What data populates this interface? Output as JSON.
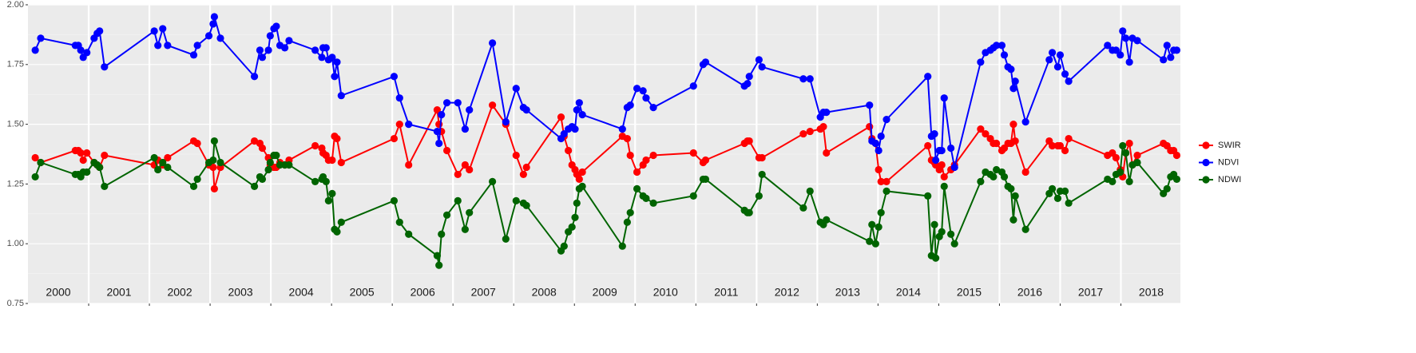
{
  "chart_data": {
    "type": "line",
    "x": [
      2000.12,
      2000.21,
      2000.78,
      2000.83,
      2000.87,
      2000.91,
      2000.97,
      2001.09,
      2001.14,
      2001.18,
      2001.26,
      2002.08,
      2002.14,
      2002.22,
      2002.3,
      2002.73,
      2002.79,
      2002.98,
      2003.05,
      2003.07,
      2003.17,
      2003.73,
      2003.82,
      2003.86,
      2003.96,
      2003.99,
      2004.05,
      2004.09,
      2004.15,
      2004.23,
      2004.3,
      2004.73,
      2004.84,
      2004.86,
      2004.91,
      2004.95,
      2005.01,
      2005.05,
      2005.09,
      2005.16,
      2006.03,
      2006.12,
      2006.27,
      2006.74,
      2006.77,
      2006.81,
      2006.9,
      2007.08,
      2007.2,
      2007.27,
      2007.65,
      2007.87,
      2008.04,
      2008.16,
      2008.21,
      2008.78,
      2008.83,
      2008.9,
      2008.96,
      2009.01,
      2009.04,
      2009.08,
      2009.13,
      2009.79,
      2009.87,
      2009.92,
      2010.03,
      2010.13,
      2010.18,
      2010.3,
      2010.96,
      2011.12,
      2011.16,
      2011.8,
      2011.85,
      2011.88,
      2012.04,
      2012.09,
      2012.77,
      2012.88,
      2013.05,
      2013.1,
      2013.15,
      2013.86,
      2013.9,
      2013.96,
      2014.01,
      2014.05,
      2014.14,
      2014.82,
      2014.88,
      2014.93,
      2014.95,
      2015.01,
      2015.05,
      2015.09,
      2015.2,
      2015.26,
      2015.69,
      2015.77,
      2015.85,
      2015.9,
      2015.95,
      2016.04,
      2016.08,
      2016.14,
      2016.19,
      2016.23,
      2016.26,
      2016.43,
      2016.82,
      2016.87,
      2016.96,
      2017.0,
      2017.08,
      2017.14,
      2017.78,
      2017.86,
      2017.92,
      2017.99,
      2018.03,
      2018.08,
      2018.14,
      2018.19,
      2018.27,
      2018.7,
      2018.76,
      2018.82,
      2018.87,
      2018.92
    ],
    "series": [
      {
        "name": "SWIR",
        "color": "#ff0000",
        "values": [
          1.36,
          1.34,
          1.39,
          1.39,
          1.38,
          1.35,
          1.38,
          1.34,
          1.33,
          1.32,
          1.37,
          1.33,
          1.35,
          1.33,
          1.36,
          1.43,
          1.42,
          1.33,
          1.32,
          1.23,
          1.32,
          1.43,
          1.42,
          1.4,
          1.36,
          1.33,
          1.32,
          1.32,
          1.34,
          1.33,
          1.35,
          1.41,
          1.4,
          1.38,
          1.37,
          1.35,
          1.35,
          1.45,
          1.44,
          1.34,
          1.44,
          1.5,
          1.33,
          1.56,
          1.5,
          1.47,
          1.39,
          1.29,
          1.33,
          1.31,
          1.58,
          1.5,
          1.37,
          1.29,
          1.32,
          1.53,
          1.45,
          1.39,
          1.33,
          1.31,
          1.29,
          1.27,
          1.3,
          1.45,
          1.44,
          1.37,
          1.3,
          1.33,
          1.35,
          1.37,
          1.38,
          1.34,
          1.35,
          1.42,
          1.43,
          1.43,
          1.36,
          1.36,
          1.46,
          1.47,
          1.48,
          1.49,
          1.38,
          1.49,
          1.44,
          1.42,
          1.31,
          1.26,
          1.26,
          1.41,
          1.35,
          1.34,
          1.33,
          1.31,
          1.33,
          1.28,
          1.31,
          1.33,
          1.48,
          1.46,
          1.44,
          1.42,
          1.42,
          1.39,
          1.4,
          1.42,
          1.42,
          1.5,
          1.43,
          1.3,
          1.43,
          1.41,
          1.41,
          1.41,
          1.39,
          1.44,
          1.37,
          1.38,
          1.36,
          1.31,
          1.28,
          1.38,
          1.42,
          1.33,
          1.37,
          1.42,
          1.41,
          1.39,
          1.39,
          1.37
        ]
      },
      {
        "name": "NDVI",
        "color": "#0000ff",
        "values": [
          1.81,
          1.86,
          1.83,
          1.83,
          1.81,
          1.78,
          1.8,
          1.86,
          1.88,
          1.89,
          1.74,
          1.89,
          1.83,
          1.9,
          1.83,
          1.79,
          1.83,
          1.87,
          1.92,
          1.95,
          1.86,
          1.7,
          1.81,
          1.78,
          1.81,
          1.87,
          1.9,
          1.91,
          1.83,
          1.82,
          1.85,
          1.81,
          1.78,
          1.82,
          1.82,
          1.77,
          1.78,
          1.7,
          1.76,
          1.62,
          1.7,
          1.61,
          1.5,
          1.47,
          1.42,
          1.54,
          1.59,
          1.59,
          1.48,
          1.56,
          1.84,
          1.51,
          1.65,
          1.57,
          1.56,
          1.44,
          1.46,
          1.48,
          1.49,
          1.48,
          1.56,
          1.59,
          1.54,
          1.48,
          1.57,
          1.58,
          1.65,
          1.64,
          1.61,
          1.57,
          1.66,
          1.75,
          1.76,
          1.66,
          1.67,
          1.7,
          1.77,
          1.74,
          1.69,
          1.69,
          1.53,
          1.55,
          1.55,
          1.58,
          1.43,
          1.42,
          1.39,
          1.45,
          1.52,
          1.7,
          1.45,
          1.46,
          1.35,
          1.39,
          1.39,
          1.61,
          1.4,
          1.32,
          1.76,
          1.8,
          1.81,
          1.82,
          1.83,
          1.83,
          1.79,
          1.74,
          1.73,
          1.65,
          1.68,
          1.51,
          1.77,
          1.8,
          1.74,
          1.79,
          1.71,
          1.68,
          1.83,
          1.81,
          1.81,
          1.79,
          1.89,
          1.86,
          1.76,
          1.86,
          1.85,
          1.77,
          1.83,
          1.78,
          1.81,
          1.81
        ]
      },
      {
        "name": "NDWI",
        "color": "#006400",
        "values": [
          1.28,
          1.34,
          1.29,
          1.29,
          1.28,
          1.3,
          1.3,
          1.34,
          1.33,
          1.32,
          1.24,
          1.36,
          1.31,
          1.34,
          1.32,
          1.24,
          1.27,
          1.34,
          1.35,
          1.43,
          1.34,
          1.24,
          1.28,
          1.27,
          1.31,
          1.34,
          1.37,
          1.37,
          1.33,
          1.33,
          1.33,
          1.26,
          1.27,
          1.28,
          1.26,
          1.18,
          1.21,
          1.06,
          1.05,
          1.09,
          1.18,
          1.09,
          1.04,
          0.95,
          0.91,
          1.04,
          1.12,
          1.18,
          1.06,
          1.13,
          1.26,
          1.02,
          1.18,
          1.17,
          1.16,
          0.97,
          0.99,
          1.05,
          1.07,
          1.11,
          1.17,
          1.23,
          1.24,
          0.99,
          1.09,
          1.13,
          1.23,
          1.2,
          1.19,
          1.17,
          1.2,
          1.27,
          1.27,
          1.14,
          1.13,
          1.13,
          1.2,
          1.29,
          1.15,
          1.22,
          1.09,
          1.08,
          1.1,
          1.01,
          1.08,
          1.0,
          1.07,
          1.13,
          1.22,
          1.2,
          0.95,
          1.08,
          0.94,
          1.03,
          1.05,
          1.24,
          1.04,
          1.0,
          1.26,
          1.3,
          1.29,
          1.28,
          1.31,
          1.3,
          1.28,
          1.24,
          1.23,
          1.1,
          1.2,
          1.06,
          1.21,
          1.23,
          1.19,
          1.22,
          1.22,
          1.17,
          1.27,
          1.26,
          1.29,
          1.3,
          1.41,
          1.38,
          1.26,
          1.33,
          1.34,
          1.21,
          1.23,
          1.28,
          1.29,
          1.27
        ]
      }
    ],
    "xlim": [
      2000,
      2018.98
    ],
    "xticks": [
      2001,
      2002,
      2003,
      2004,
      2005,
      2006,
      2007,
      2008,
      2009,
      2010,
      2011,
      2012,
      2013,
      2014,
      2015,
      2016,
      2017,
      2018
    ],
    "year_labels": [
      {
        "value": 2000.5,
        "label": "2000"
      },
      {
        "value": 2001.5,
        "label": "2001"
      },
      {
        "value": 2002.5,
        "label": "2002"
      },
      {
        "value": 2003.5,
        "label": "2003"
      },
      {
        "value": 2004.5,
        "label": "2004"
      },
      {
        "value": 2005.5,
        "label": "2005"
      },
      {
        "value": 2006.5,
        "label": "2006"
      },
      {
        "value": 2007.5,
        "label": "2007"
      },
      {
        "value": 2008.5,
        "label": "2008"
      },
      {
        "value": 2009.5,
        "label": "2009"
      },
      {
        "value": 2010.5,
        "label": "2010"
      },
      {
        "value": 2011.5,
        "label": "2011"
      },
      {
        "value": 2012.5,
        "label": "2012"
      },
      {
        "value": 2013.5,
        "label": "2013"
      },
      {
        "value": 2014.5,
        "label": "2014"
      },
      {
        "value": 2015.5,
        "label": "2015"
      },
      {
        "value": 2016.5,
        "label": "2016"
      },
      {
        "value": 2017.5,
        "label": "2017"
      },
      {
        "value": 2018.5,
        "label": "2018"
      }
    ],
    "ylim": [
      0.75,
      2.0
    ],
    "yticks": [
      {
        "value": 0.75,
        "label": "0.75"
      },
      {
        "value": 1.0,
        "label": "1.00"
      },
      {
        "value": 1.25,
        "label": "1.25"
      },
      {
        "value": 1.5,
        "label": "1.50"
      },
      {
        "value": 1.75,
        "label": "1.75"
      },
      {
        "value": 2.0,
        "label": "2.00"
      }
    ],
    "grid": true,
    "legend": "right"
  }
}
